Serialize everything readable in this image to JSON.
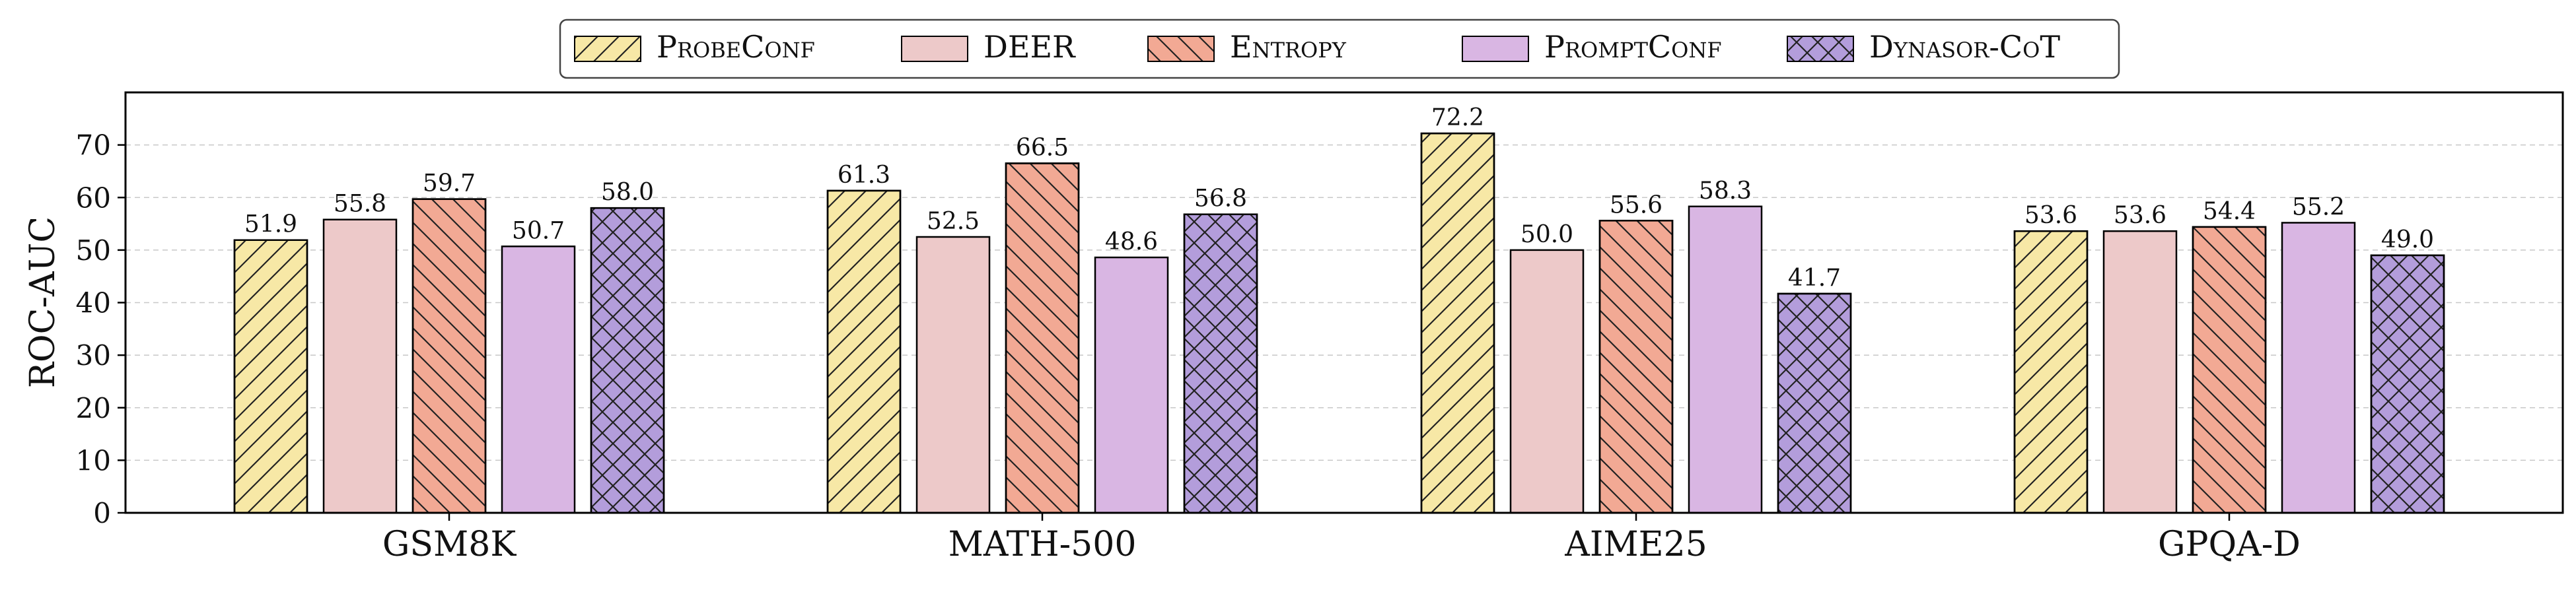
{
  "chart_data": {
    "type": "bar",
    "title": "",
    "xlabel": "",
    "ylabel": "ROC-AUC",
    "ylim": [
      0,
      80
    ],
    "yticks": [
      0,
      10,
      20,
      30,
      40,
      50,
      60,
      70
    ],
    "grid": "horizontal-dashed",
    "legend_position": "top-center",
    "categories": [
      "GSM8K",
      "MATH-500",
      "AIME25",
      "GPQA-D"
    ],
    "series": [
      {
        "name": "ProbeConf",
        "color": "#F7E8A6",
        "hatch": "diagonal-forward",
        "values": [
          51.9,
          61.3,
          72.2,
          53.6
        ]
      },
      {
        "name": "DEER",
        "color": "#EDC9C9",
        "hatch": "none",
        "values": [
          55.8,
          52.5,
          50.0,
          53.6
        ]
      },
      {
        "name": "Entropy",
        "color": "#F2A994",
        "hatch": "diagonal-backward",
        "values": [
          59.7,
          66.5,
          55.6,
          54.4
        ]
      },
      {
        "name": "PromptConf",
        "color": "#D9B6E3",
        "hatch": "none",
        "values": [
          50.7,
          48.6,
          58.3,
          55.2
        ]
      },
      {
        "name": "Dynasor-CoT",
        "color": "#B39DDB",
        "hatch": "crosshatch",
        "values": [
          58.0,
          56.8,
          41.7,
          49.0
        ]
      }
    ]
  }
}
